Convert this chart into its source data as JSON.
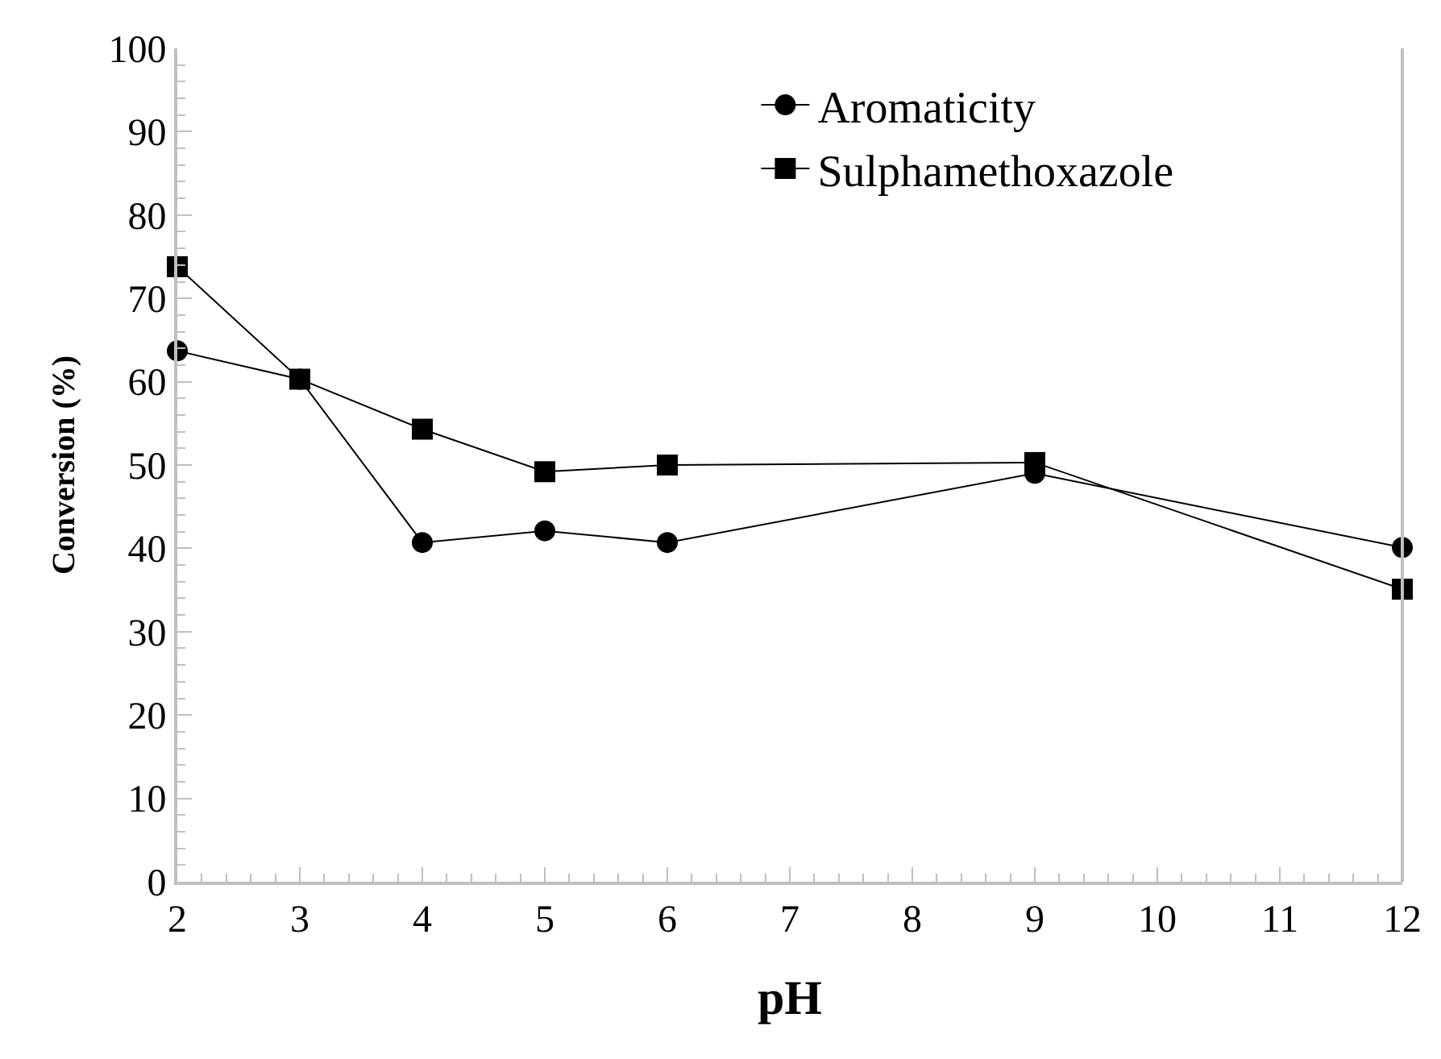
{
  "chart_data": {
    "type": "line",
    "xlabel": "pH",
    "ylabel": "Conversion (%)",
    "x": [
      2,
      3,
      4,
      5,
      6,
      9,
      12
    ],
    "series": [
      {
        "name": "Aromaticity",
        "color": "#000000",
        "marker": "circle",
        "values": [
          63.7,
          60.3,
          40.7,
          42.1,
          40.7,
          49.0,
          40.1
        ]
      },
      {
        "name": "Sulphamethoxazole",
        "color": "#000000",
        "marker": "square",
        "values": [
          73.8,
          60.3,
          54.3,
          49.2,
          50.0,
          50.3,
          35.1
        ]
      }
    ],
    "xlim": [
      2,
      12
    ],
    "xticks": [
      2,
      3,
      4,
      5,
      6,
      7,
      8,
      9,
      10,
      11,
      12
    ],
    "ylim": [
      0,
      100
    ],
    "yticks": [
      0,
      10,
      20,
      30,
      40,
      50,
      60,
      70,
      80,
      90,
      100
    ],
    "legend": "top right",
    "line_style": "solid"
  }
}
